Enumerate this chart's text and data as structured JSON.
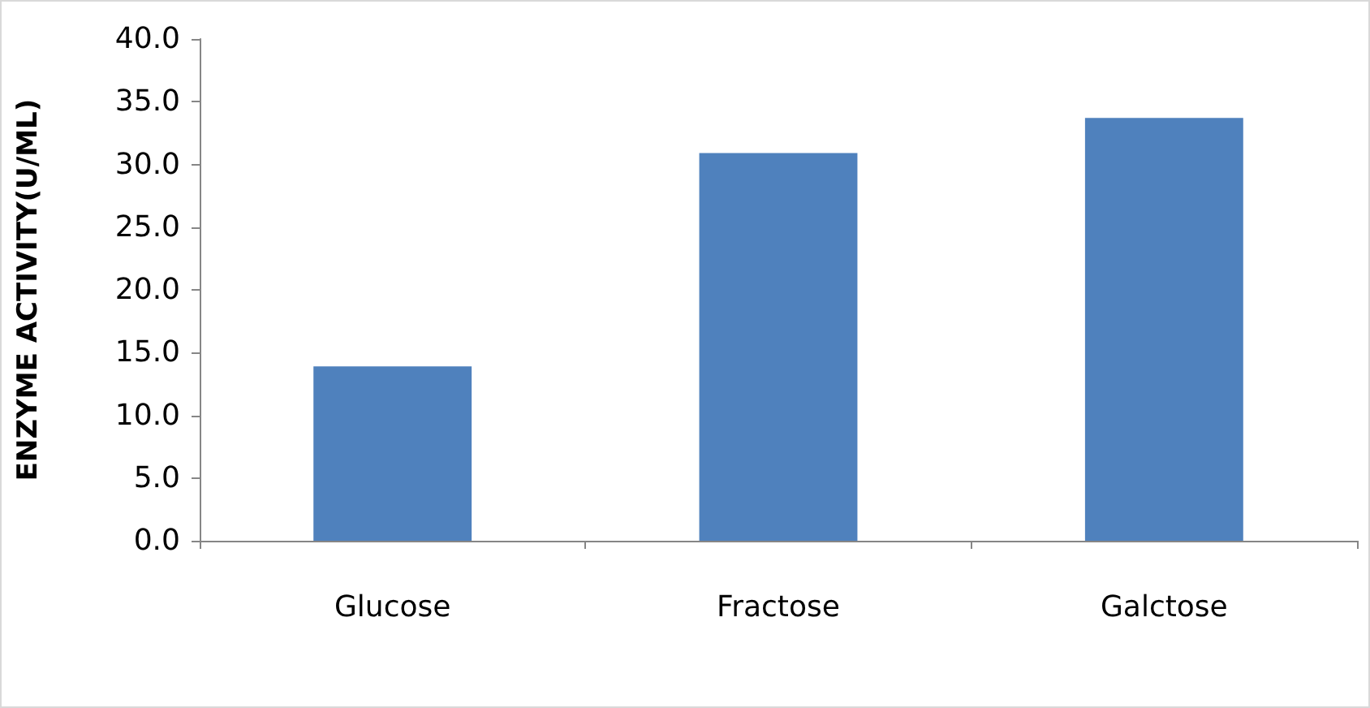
{
  "chart_data": {
    "type": "bar",
    "ylabel": "ENZYME ACTIVITY(U/ML)",
    "categories": [
      "Glucose",
      "Fractose",
      "Galctose"
    ],
    "values": [
      13.9,
      30.9,
      33.7
    ],
    "color": "#4f81bd",
    "ylim": [
      0,
      40
    ],
    "yticks": [
      {
        "value": 0,
        "label": "0.0"
      },
      {
        "value": 5,
        "label": "5.0"
      },
      {
        "value": 10,
        "label": "10.0"
      },
      {
        "value": 15,
        "label": "15.0"
      },
      {
        "value": 20,
        "label": "20.0"
      },
      {
        "value": 25,
        "label": "25.0"
      },
      {
        "value": 30,
        "label": "30.0"
      },
      {
        "value": 35,
        "label": "35.0"
      },
      {
        "value": 40,
        "label": "40.0"
      }
    ],
    "grid": false
  }
}
